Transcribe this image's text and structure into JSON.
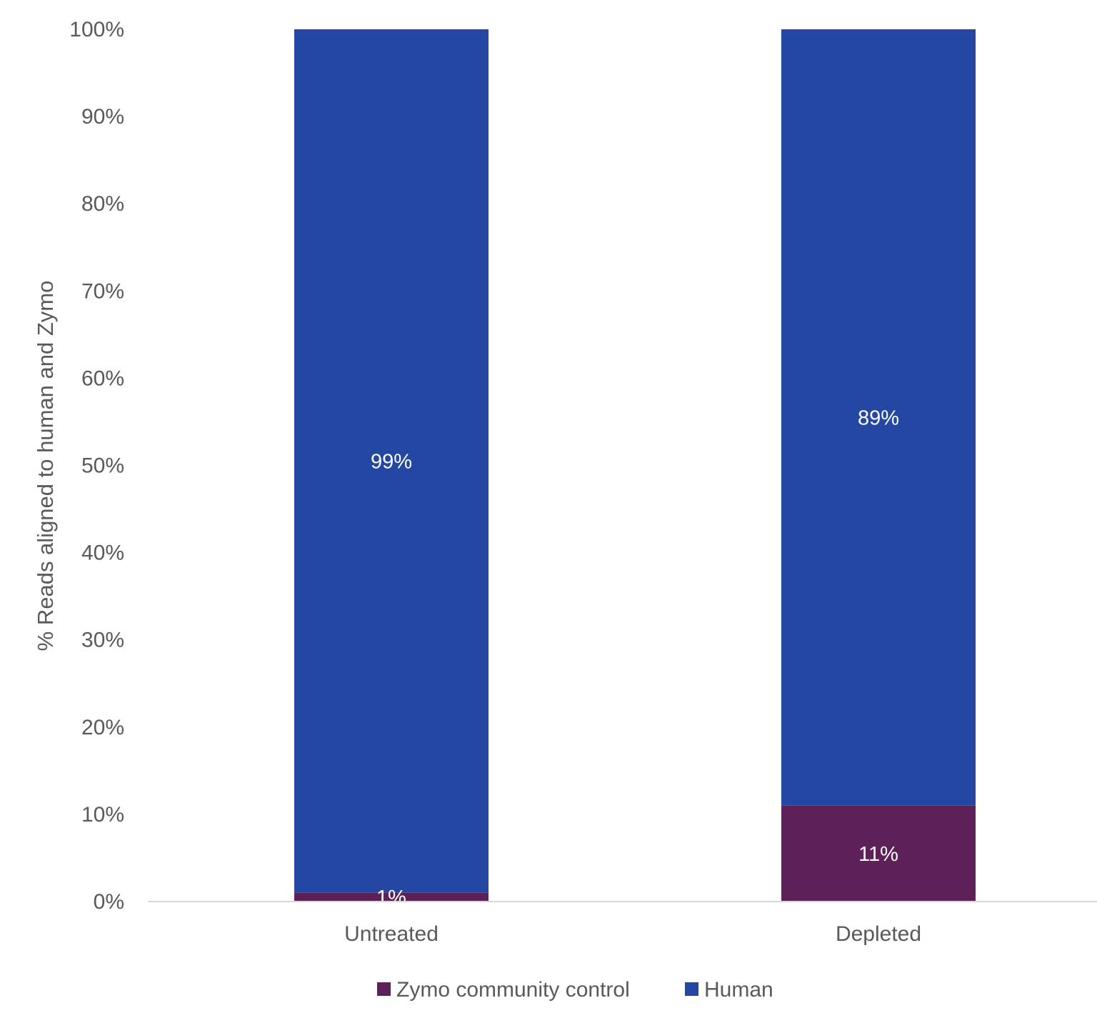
{
  "chart_data": {
    "type": "bar",
    "stacked": true,
    "ylabel": "% Reads aligned to human and Zymo",
    "ylim": [
      0,
      100
    ],
    "yticks": [
      "0%",
      "10%",
      "20%",
      "30%",
      "40%",
      "50%",
      "60%",
      "70%",
      "80%",
      "90%",
      "100%"
    ],
    "categories": [
      "Untreated",
      "Depleted"
    ],
    "series": [
      {
        "name": "Zymo community control",
        "values": [
          1,
          11
        ],
        "labels": [
          "1%",
          "11%"
        ],
        "color": "#5E2157"
      },
      {
        "name": "Human",
        "values": [
          99,
          89
        ],
        "labels": [
          "99%",
          "89%"
        ],
        "color": "#2447A4"
      }
    ],
    "grid": false,
    "legend": "bottom"
  }
}
